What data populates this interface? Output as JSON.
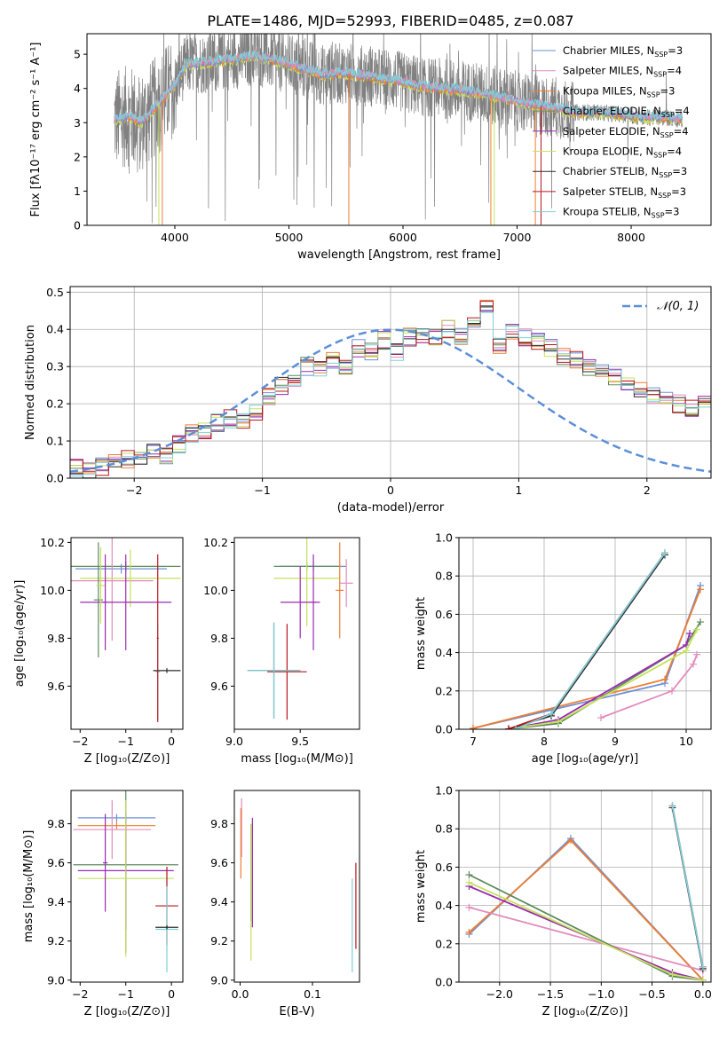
{
  "figure": {
    "title": "PLATE=1486, MJD=52993, FIBERID=0485, z=0.087"
  },
  "colors": {
    "chabrier_miles": "#6e8fd8",
    "salpeter_miles": "#e28bbd",
    "kroupa_miles": "#ee7e30",
    "chabrier_elodie": "#5e8a5e",
    "salpeter_elodie": "#9a2bb0",
    "kroupa_elodie": "#c5e25a",
    "chabrier_stelib": "#2b2b2b",
    "salpeter_stelib": "#b8161c",
    "kroupa_stelib": "#7fd0d8",
    "data_spectrum": "#808080",
    "gaussian": "#5b8fd8",
    "grid": "#b0b0b0"
  },
  "models": [
    {
      "key": "chabrier_miles",
      "label_pre": "Chabrier MILES, N",
      "sub": "SSP",
      "label_post": "=3"
    },
    {
      "key": "salpeter_miles",
      "label_pre": "Salpeter MILES, N",
      "sub": "SSP",
      "label_post": "=4"
    },
    {
      "key": "kroupa_miles",
      "label_pre": "Kroupa MILES, N",
      "sub": "SSP",
      "label_post": "=3"
    },
    {
      "key": "chabrier_elodie",
      "label_pre": "Chabrier ELODIE, N",
      "sub": "SSP",
      "label_post": "=4"
    },
    {
      "key": "salpeter_elodie",
      "label_pre": "Salpeter ELODIE, N",
      "sub": "SSP",
      "label_post": "=4"
    },
    {
      "key": "kroupa_elodie",
      "label_pre": "Kroupa ELODIE, N",
      "sub": "SSP",
      "label_post": "=4"
    },
    {
      "key": "chabrier_stelib",
      "label_pre": "Chabrier STELIB, N",
      "sub": "SSP",
      "label_post": "=3"
    },
    {
      "key": "salpeter_stelib",
      "label_pre": "Salpeter STELIB, N",
      "sub": "SSP",
      "label_post": "=3"
    },
    {
      "key": "kroupa_stelib",
      "label_pre": "Kroupa STELIB, N",
      "sub": "SSP",
      "label_post": "=3"
    }
  ],
  "chart_data": [
    {
      "id": "spectrum",
      "type": "line",
      "xlabel": "wavelength [Angstrom, rest frame]",
      "ylabel": "Flux [fλ10⁻¹⁷ erg cm⁻² s⁻¹ A⁻¹]",
      "xlim": [
        3230,
        8700
      ],
      "ylim": [
        0,
        5.6
      ],
      "xticks": [
        4000,
        5000,
        6000,
        7000,
        8000
      ],
      "yticks": [
        0,
        1,
        2,
        3,
        4,
        5
      ],
      "grid": false,
      "legend": "top-right",
      "continuum": {
        "x": [
          3500,
          3600,
          3700,
          3800,
          3900,
          4000,
          4100,
          4300,
          4500,
          4700,
          4900,
          5100,
          5300,
          5500,
          5700,
          5900,
          6100,
          6300,
          6500,
          6700,
          6900,
          7100,
          7300,
          7500,
          7700,
          7900,
          8100,
          8300,
          8450
        ],
        "y": [
          3.1,
          3.2,
          3.0,
          3.35,
          3.7,
          4.1,
          4.7,
          4.75,
          4.85,
          4.95,
          4.8,
          4.6,
          4.4,
          4.45,
          4.35,
          4.25,
          4.1,
          4.0,
          3.95,
          3.85,
          3.7,
          3.55,
          3.45,
          3.3,
          3.3,
          3.25,
          3.15,
          3.15,
          3.1
        ]
      }
    },
    {
      "id": "residuals",
      "type": "bar",
      "xlabel": "(data-model)/error",
      "ylabel": "Normed distribution",
      "xlim": [
        -2.5,
        2.5
      ],
      "ylim": [
        0,
        0.515
      ],
      "xticks": [
        -2,
        -1,
        0,
        1,
        2
      ],
      "yticks": [
        0.0,
        0.1,
        0.2,
        0.3,
        0.4,
        0.5
      ],
      "grid": true,
      "legend": "top-right",
      "legend_label": "𝒩(0, 1)",
      "bin_width": 0.1,
      "bin_start": -2.5,
      "histogram": [
        0.03,
        0.025,
        0.03,
        0.05,
        0.05,
        0.06,
        0.07,
        0.06,
        0.09,
        0.12,
        0.13,
        0.15,
        0.16,
        0.15,
        0.18,
        0.22,
        0.25,
        0.26,
        0.3,
        0.29,
        0.32,
        0.3,
        0.35,
        0.34,
        0.37,
        0.34,
        0.38,
        0.38,
        0.38,
        0.4,
        0.38,
        0.43,
        0.46,
        0.36,
        0.39,
        0.38,
        0.37,
        0.35,
        0.33,
        0.32,
        0.3,
        0.28,
        0.27,
        0.26,
        0.24,
        0.22,
        0.21,
        0.2,
        0.19,
        0.2,
        0.17,
        0.16,
        0.15,
        0.14,
        0.1,
        0.09,
        0.08,
        0.07,
        0.05,
        0.04,
        0.035,
        0.03,
        0.02,
        0.018,
        0.015
      ]
    },
    {
      "id": "age_vs_Z",
      "type": "scatter",
      "xlabel": "Z [log₁₀(Z/Z⊙)]",
      "ylabel": "age  [log₁₀(age/yr)]",
      "xlim": [
        -2.2,
        0.25
      ],
      "ylim": [
        9.42,
        10.22
      ],
      "xticks": [
        -2,
        -1,
        0
      ],
      "yticks": [
        9.6,
        9.8,
        10.0,
        10.2
      ],
      "points": [
        {
          "model": "chabrier_miles",
          "x": -1.1,
          "y": 10.09,
          "xerr": 1.0,
          "yerr": 0.02
        },
        {
          "model": "chabrier_elodie",
          "x": -1.0,
          "y": 10.1,
          "xerr": 1.2,
          "yerr": 0.02
        },
        {
          "model": "salpeter_miles",
          "x": -1.3,
          "y": 10.04,
          "xerr": 0.9,
          "yerr": 0.25
        },
        {
          "model": "kroupa_elodie",
          "x": -0.9,
          "y": 10.05,
          "xerr": 1.1,
          "yerr": 0.12
        },
        {
          "model": "chabrier_elodie",
          "x": -1.6,
          "y": 9.96,
          "xerr": 0.1,
          "yerr": 0.24
        },
        {
          "model": "salpeter_elodie",
          "x": -1.0,
          "y": 9.95,
          "xerr": 1.0,
          "yerr": 0.2
        },
        {
          "model": "kroupa_elodie",
          "x": -1.55,
          "y": 10.02,
          "xerr": 0.1,
          "yerr": 0.16
        },
        {
          "model": "salpeter_elodie",
          "x": -1.45,
          "y": 9.95,
          "xerr": 0.05,
          "yerr": 0.2
        },
        {
          "model": "kroupa_stelib",
          "x": -0.3,
          "y": 9.66,
          "xerr": 0.05,
          "yerr": 0.2
        },
        {
          "model": "chabrier_stelib",
          "x": -0.1,
          "y": 9.665,
          "xerr": 0.3,
          "yerr": 0.01
        },
        {
          "model": "salpeter_stelib",
          "x": -0.3,
          "y": 9.8,
          "xerr": 0.02,
          "yerr": 0.35
        }
      ]
    },
    {
      "id": "age_vs_mass",
      "type": "scatter",
      "xlabel": "mass [log₁₀(M/M⊙)]",
      "ylabel": "",
      "xlim": [
        9.0,
        9.95
      ],
      "ylim": [
        9.42,
        10.22
      ],
      "xticks": [
        9.0,
        9.5
      ],
      "yticks": [
        9.6,
        9.8,
        10.0,
        10.2
      ],
      "points": [
        {
          "model": "chabrier_miles",
          "x": 9.6,
          "y": 10.1,
          "xerr": 0.25,
          "yerr": 0.02
        },
        {
          "model": "chabrier_elodie",
          "x": 9.55,
          "y": 10.1,
          "xerr": 0.25,
          "yerr": 0.02
        },
        {
          "model": "kroupa_elodie",
          "x": 9.55,
          "y": 10.05,
          "xerr": 0.25,
          "yerr": 0.2
        },
        {
          "model": "salpeter_miles",
          "x": 9.85,
          "y": 10.03,
          "xerr": 0.05,
          "yerr": 0.1
        },
        {
          "model": "salpeter_elodie",
          "x": 9.5,
          "y": 9.95,
          "xerr": 0.15,
          "yerr": 0.15
        },
        {
          "model": "kroupa_miles",
          "x": 9.8,
          "y": 10.0,
          "xerr": 0.03,
          "yerr": 0.2
        },
        {
          "model": "salpeter_stelib",
          "x": 9.4,
          "y": 9.66,
          "xerr": 0.15,
          "yerr": 0.2
        },
        {
          "model": "chabrier_stelib",
          "x": 9.3,
          "y": 9.665,
          "xerr": 0.2,
          "yerr": 0.2
        },
        {
          "model": "kroupa_stelib",
          "x": 9.3,
          "y": 9.665,
          "xerr": 0.2,
          "yerr": 0.2
        },
        {
          "model": "salpeter_elodie",
          "x": 9.6,
          "y": 9.95,
          "xerr": 0.02,
          "yerr": 0.2
        }
      ]
    },
    {
      "id": "weight_vs_age",
      "type": "line",
      "xlabel": "age  [log₁₀(age/yr)]",
      "ylabel": "mass weight",
      "xlim": [
        6.8,
        10.35
      ],
      "ylim": [
        0,
        1.0
      ],
      "xticks": [
        7,
        8,
        9,
        10
      ],
      "yticks": [
        0.0,
        0.2,
        0.4,
        0.6,
        0.8,
        1.0
      ],
      "grid": true,
      "series": [
        {
          "model": "chabrier_miles",
          "x": [
            7.0,
            9.7,
            10.2
          ],
          "y": [
            0.005,
            0.24,
            0.75
          ]
        },
        {
          "model": "kroupa_miles",
          "x": [
            7.0,
            9.7,
            10.2
          ],
          "y": [
            0.005,
            0.26,
            0.73
          ]
        },
        {
          "model": "salpeter_miles",
          "x": [
            8.8,
            9.8,
            10.1,
            10.15
          ],
          "y": [
            0.06,
            0.2,
            0.34,
            0.39
          ]
        },
        {
          "model": "chabrier_elodie",
          "x": [
            7.5,
            8.2,
            10.0,
            10.2
          ],
          "y": [
            0.002,
            0.03,
            0.44,
            0.56
          ]
        },
        {
          "model": "salpeter_elodie",
          "x": [
            7.5,
            8.2,
            10.0,
            10.05
          ],
          "y": [
            0.002,
            0.05,
            0.44,
            0.5
          ]
        },
        {
          "model": "kroupa_elodie",
          "x": [
            7.5,
            8.2,
            10.0,
            10.15
          ],
          "y": [
            0.002,
            0.04,
            0.41,
            0.52
          ]
        },
        {
          "model": "chabrier_stelib",
          "x": [
            7.5,
            8.1,
            9.7
          ],
          "y": [
            0.002,
            0.07,
            0.91
          ]
        },
        {
          "model": "salpeter_stelib",
          "x": [
            7.5,
            8.1,
            9.7
          ],
          "y": [
            0.002,
            0.08,
            0.92
          ]
        },
        {
          "model": "kroupa_stelib",
          "x": [
            7.6,
            8.1,
            9.7
          ],
          "y": [
            0.002,
            0.08,
            0.92
          ]
        }
      ]
    },
    {
      "id": "mass_vs_Z",
      "type": "scatter",
      "xlabel": "Z [log₁₀(Z/Z⊙)]",
      "ylabel": "mass [log₁₀(M/M⊙)]",
      "xlim": [
        -2.2,
        0.25
      ],
      "ylim": [
        8.99,
        9.97
      ],
      "xticks": [
        -2,
        -1,
        0
      ],
      "yticks": [
        9.0,
        9.2,
        9.4,
        9.6,
        9.8
      ],
      "points": [
        {
          "model": "chabrier_miles",
          "x": -1.2,
          "y": 9.83,
          "xerr": 0.85,
          "yerr": 0.02
        },
        {
          "model": "kroupa_miles",
          "x": -1.2,
          "y": 9.79,
          "xerr": 0.85,
          "yerr": 0.02
        },
        {
          "model": "salpeter_miles",
          "x": -1.3,
          "y": 9.77,
          "xerr": 0.85,
          "yerr": 0.15
        },
        {
          "model": "chabrier_elodie",
          "x": -1.0,
          "y": 9.59,
          "xerr": 1.15,
          "yerr": 0.45
        },
        {
          "model": "salpeter_elodie",
          "x": -1.0,
          "y": 9.56,
          "xerr": 1.05,
          "yerr": 0.3
        },
        {
          "model": "kroupa_elodie",
          "x": -1.0,
          "y": 9.52,
          "xerr": 1.05,
          "yerr": 0.4
        },
        {
          "model": "salpeter_elodie",
          "x": -1.45,
          "y": 9.6,
          "xerr": 0.05,
          "yerr": 0.25
        },
        {
          "model": "salpeter_stelib",
          "x": -0.1,
          "y": 9.38,
          "xerr": 0.25,
          "yerr": 0.2
        },
        {
          "model": "kroupa_stelib",
          "x": -0.1,
          "y": 9.26,
          "xerr": 0.25,
          "yerr": 0.22
        },
        {
          "model": "chabrier_stelib",
          "x": -0.1,
          "y": 9.27,
          "xerr": 0.25,
          "yerr": 0.01
        }
      ]
    },
    {
      "id": "mass_vs_ebv",
      "type": "scatter",
      "xlabel": "E(B-V)",
      "ylabel": "",
      "xlim": [
        -0.008,
        0.165
      ],
      "ylim": [
        8.99,
        9.97
      ],
      "xticks": [
        0.0,
        0.1
      ],
      "yticks": [
        9.0,
        9.2,
        9.4,
        9.6,
        9.8
      ],
      "points": [
        {
          "model": "salpeter_miles",
          "x": 0.002,
          "y": 9.78,
          "xerr": 0.0,
          "yerr": 0.15
        },
        {
          "model": "kroupa_miles",
          "x": 0.001,
          "y": 9.7,
          "xerr": 0.0,
          "yerr": 0.18
        },
        {
          "model": "chabrier_elodie",
          "x": 0.015,
          "y": 9.55,
          "xerr": 0.0,
          "yerr": 0.25
        },
        {
          "model": "kroupa_elodie",
          "x": 0.015,
          "y": 9.45,
          "xerr": 0.0,
          "yerr": 0.35
        },
        {
          "model": "salpeter_elodie",
          "x": 0.017,
          "y": 9.55,
          "xerr": 0.0,
          "yerr": 0.28
        },
        {
          "model": "kroupa_stelib",
          "x": 0.155,
          "y": 9.28,
          "xerr": 0.0,
          "yerr": 0.24
        },
        {
          "model": "salpeter_stelib",
          "x": 0.16,
          "y": 9.38,
          "xerr": 0.0,
          "yerr": 0.22
        }
      ]
    },
    {
      "id": "weight_vs_Z",
      "type": "line",
      "xlabel": "Z [log₁₀(Z/Z⊙)]",
      "ylabel": "mass weight",
      "xlim": [
        -2.4,
        0.08
      ],
      "ylim": [
        0,
        1.0
      ],
      "xticks": [
        -2.0,
        -1.5,
        -1.0,
        -0.5,
        0.0
      ],
      "yticks": [
        0.0,
        0.2,
        0.4,
        0.6,
        0.8,
        1.0
      ],
      "grid": true,
      "series": [
        {
          "model": "chabrier_miles",
          "x": [
            -2.3,
            -1.3,
            0.0
          ],
          "y": [
            0.25,
            0.75,
            0.01
          ]
        },
        {
          "model": "kroupa_miles",
          "x": [
            -2.3,
            -1.3,
            0.0
          ],
          "y": [
            0.26,
            0.74,
            0.01
          ]
        },
        {
          "model": "salpeter_miles",
          "x": [
            -2.3,
            0.0
          ],
          "y": [
            0.39,
            0.06
          ]
        },
        {
          "model": "chabrier_elodie",
          "x": [
            -2.3,
            -0.3,
            0.0
          ],
          "y": [
            0.56,
            0.03,
            0.01
          ]
        },
        {
          "model": "salpeter_elodie",
          "x": [
            -2.3,
            -0.3,
            0.0
          ],
          "y": [
            0.5,
            0.05,
            0.01
          ]
        },
        {
          "model": "kroupa_elodie",
          "x": [
            -2.3,
            -0.3,
            0.0
          ],
          "y": [
            0.52,
            0.04,
            0.01
          ]
        },
        {
          "model": "chabrier_stelib",
          "x": [
            -0.3,
            0.0
          ],
          "y": [
            0.91,
            0.07
          ]
        },
        {
          "model": "salpeter_stelib",
          "x": [
            -0.3,
            0.0
          ],
          "y": [
            0.92,
            0.08
          ]
        },
        {
          "model": "kroupa_stelib",
          "x": [
            -0.3,
            0.0
          ],
          "y": [
            0.92,
            0.08
          ]
        }
      ]
    }
  ]
}
